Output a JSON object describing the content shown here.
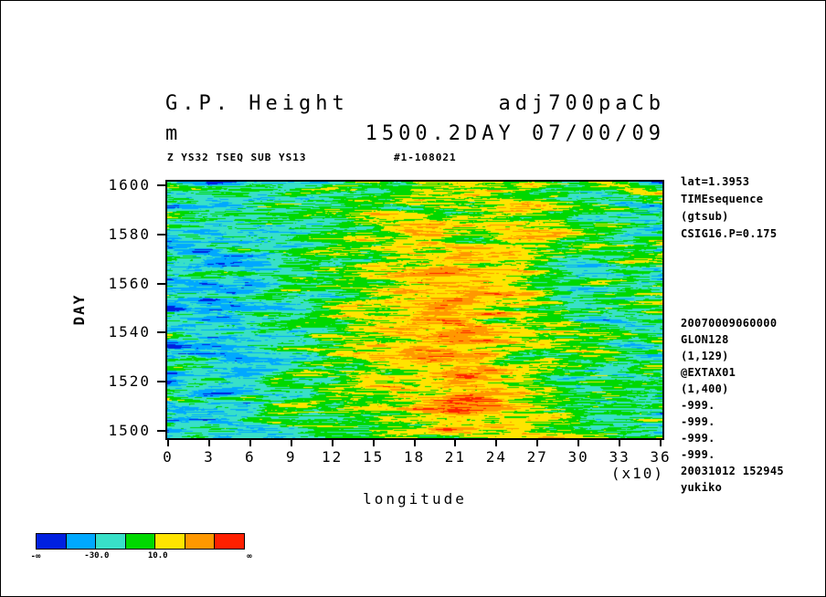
{
  "window": {
    "background": "#ffffff"
  },
  "title": {
    "line1_left": "G.P. Height",
    "line1_right": "adj700paCb",
    "line2_left": "m",
    "line2_right": "1500.2DAY 07/00/09",
    "meta_left": "Z YS32 TSEQ SUB YS13",
    "meta_right": "#1-108021"
  },
  "right_annotations": {
    "block1": [
      "lat=1.3953",
      "TIMEsequence",
      "(gtsub)",
      "CSIG16.P=0.175"
    ],
    "block2": [
      "20070009060000",
      "GLON128",
      "(1,129)",
      "@EXTAX01",
      "(1,400)",
      "-999.",
      "-999.",
      "-999.",
      "-999.",
      "20031012 152945",
      "yukiko"
    ]
  },
  "chart_data": {
    "type": "heatmap",
    "title": "G.P. Height (m) adj700paCb 1500.2DAY 07/00/09",
    "xlabel": "longitude",
    "x_unit": "(x10)",
    "x_ticks": [
      0,
      3,
      6,
      9,
      12,
      15,
      18,
      21,
      24,
      27,
      30,
      33,
      36
    ],
    "x_range": [
      0,
      36
    ],
    "ylabel": "DAY",
    "y_ticks": [
      1600,
      1580,
      1560,
      1540,
      1520,
      1500
    ],
    "y_range": [
      1500,
      1600
    ],
    "grid": false,
    "legend_position": "bottom-left colorbar",
    "colorbar": {
      "colors": [
        "#0020e0",
        "#00a8ff",
        "#38e0c8",
        "#00d800",
        "#ffe400",
        "#ff9800",
        "#ff2000"
      ],
      "levels": [
        -50,
        -30,
        -10,
        10,
        30,
        50
      ],
      "labels": [
        {
          "text": "-30.0",
          "boundary_index": 1
        },
        {
          "text": "10.0",
          "boundary_index": 3
        }
      ],
      "end_left": "-∞",
      "end_right": "∞"
    },
    "coarse_field": {
      "x": [
        0,
        3,
        6,
        9,
        12,
        15,
        18,
        21,
        24,
        27,
        30,
        33,
        36
      ],
      "day": [
        1600,
        1580,
        1560,
        1540,
        1520,
        1500
      ],
      "values": [
        [
          -14,
          -20,
          -16,
          -10,
          -6,
          0,
          6,
          14,
          22,
          12,
          -2,
          -10,
          -12
        ],
        [
          -18,
          -26,
          -20,
          -12,
          -6,
          2,
          12,
          18,
          16,
          6,
          -4,
          -12,
          -14
        ],
        [
          -24,
          -32,
          -26,
          -14,
          -2,
          10,
          24,
          30,
          20,
          4,
          -6,
          -14,
          -16
        ],
        [
          -20,
          -30,
          -24,
          -12,
          2,
          16,
          30,
          32,
          22,
          8,
          -4,
          -12,
          -14
        ],
        [
          -18,
          -26,
          -20,
          -10,
          0,
          10,
          22,
          32,
          28,
          14,
          0,
          -8,
          -12
        ],
        [
          -14,
          -22,
          -16,
          -8,
          -2,
          6,
          16,
          26,
          30,
          16,
          2,
          -6,
          -10
        ]
      ],
      "note": "coarse anomaly structure estimated from pixel colors; field is streaky zonally-elongated noise around these means"
    },
    "noise": {
      "std": 13,
      "seed": 20031012
    }
  }
}
